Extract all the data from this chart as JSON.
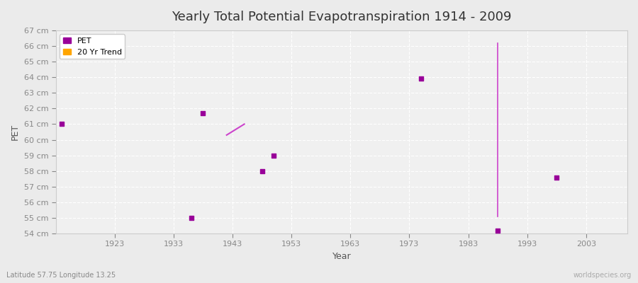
{
  "title": "Yearly Total Potential Evapotranspiration 1914 - 2009",
  "xlabel": "Year",
  "ylabel": "PET",
  "subtitle_lat_lon": "Latitude 57.75 Longitude 13.25",
  "watermark": "worldspecies.org",
  "ylim": [
    54,
    67
  ],
  "xlim": [
    1913,
    2010
  ],
  "ytick_labels": [
    "54 cm",
    "55 cm",
    "56 cm",
    "57 cm",
    "58 cm",
    "59 cm",
    "60 cm",
    "61 cm",
    "62 cm",
    "63 cm",
    "64 cm",
    "65 cm",
    "66 cm",
    "67 cm"
  ],
  "ytick_values": [
    54,
    55,
    56,
    57,
    58,
    59,
    60,
    61,
    62,
    63,
    64,
    65,
    66,
    67
  ],
  "xtick_values": [
    1923,
    1933,
    1943,
    1953,
    1963,
    1973,
    1983,
    1993,
    2003
  ],
  "pet_points": [
    [
      1914,
      61.0
    ],
    [
      1936,
      55.0
    ],
    [
      1938,
      61.7
    ],
    [
      1948,
      58.0
    ],
    [
      1950,
      59.0
    ],
    [
      1975,
      63.9
    ],
    [
      1988,
      54.2
    ],
    [
      1998,
      57.6
    ]
  ],
  "trend_line_1": {
    "x": [
      1942,
      1945
    ],
    "y": [
      60.3,
      61.0
    ],
    "color": "#cc44cc",
    "linewidth": 1.5
  },
  "trend_line_2": {
    "x": [
      1988,
      1988
    ],
    "y": [
      66.2,
      55.1
    ],
    "color": "#cc44cc",
    "linewidth": 1.2
  },
  "pet_color": "#990099",
  "trend_color": "#cc44cc",
  "legend_pet_color": "#990099",
  "legend_trend_color": "#FFA500",
  "background_color": "#ebebeb",
  "plot_bg_color": "#f0f0f0",
  "grid_color": "#ffffff",
  "marker_size": 4
}
